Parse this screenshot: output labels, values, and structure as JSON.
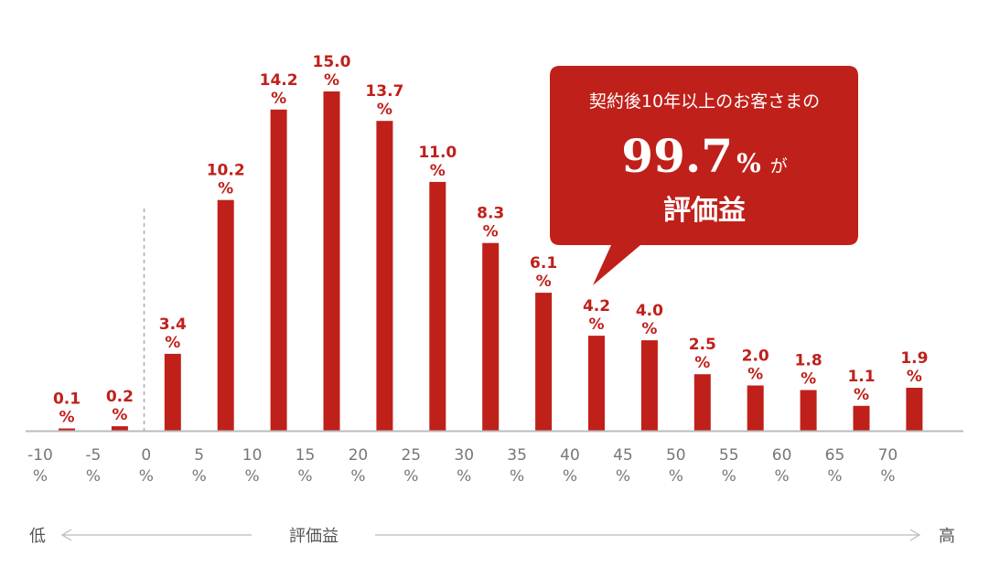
{
  "chart_data": {
    "type": "bar",
    "categories": [
      "-10%",
      "-5%",
      "0%",
      "5%",
      "10%",
      "15%",
      "20%",
      "25%",
      "30%",
      "35%",
      "40%",
      "45%",
      "50%",
      "55%",
      "60%",
      "65%",
      "70%"
    ],
    "bin_labels": [
      "-10\n%",
      "-5\n%",
      "0\n%",
      "5\n%",
      "10\n%",
      "15\n%",
      "20\n%",
      "25\n%",
      "30\n%",
      "35\n%",
      "40\n%",
      "45\n%",
      "50\n%",
      "55\n%",
      "60\n%",
      "65\n%",
      "70\n%"
    ],
    "values": [
      0.1,
      0.2,
      3.4,
      10.2,
      14.2,
      15.0,
      13.7,
      11.0,
      8.3,
      6.1,
      4.2,
      4.0,
      2.5,
      2.0,
      1.8,
      1.1,
      1.9
    ],
    "value_labels": [
      "0.1",
      "0.2",
      "3.4",
      "10.2",
      "14.2",
      "15.0",
      "13.7",
      "11.0",
      "8.3",
      "6.1",
      "4.2",
      "4.0",
      "2.5",
      "2.0",
      "1.8",
      "1.1",
      "1.9"
    ],
    "value_unit": "%",
    "tick_unit": "%",
    "xlabel": "評価益",
    "xlabel_low": "低",
    "xlabel_high": "高",
    "ylim": [
      0,
      15
    ],
    "bar_color": "#c0201a",
    "zero_line": "dashed"
  },
  "callout": {
    "line1": "契約後10年以上のお客さまの",
    "big_number": "99.7",
    "big_unit": "%",
    "suffix": "が",
    "line3": "評価益",
    "color": "#c0201a"
  }
}
